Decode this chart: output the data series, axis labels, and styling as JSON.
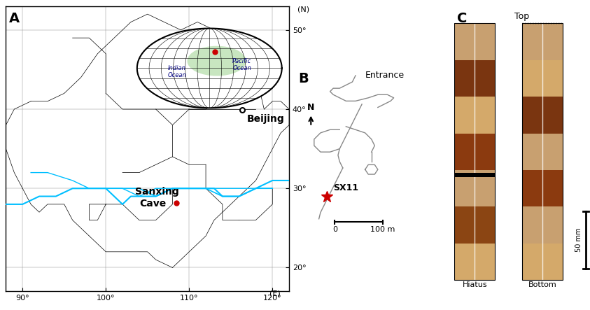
{
  "panel_A_label": "A",
  "panel_B_label": "B",
  "panel_C_label": "C",
  "beijing_lon": 116.4,
  "beijing_lat": 39.9,
  "cave_lon": 108.5,
  "cave_lat": 28.2,
  "globe_dot_lon": 108.5,
  "globe_dot_lat": 28.2,
  "map_xlim": [
    88,
    122
  ],
  "map_ylim": [
    17,
    53
  ],
  "xticks": [
    90,
    100,
    110,
    120
  ],
  "yticks": [
    20,
    30,
    40,
    50
  ],
  "xlabel": "(E)",
  "ylabel": "(N)",
  "beijing_label": "Beijing",
  "cave_label_line1": "Sanxing",
  "cave_label_line2": "Cave",
  "entrance_label": "Entrance",
  "sx11_label": "SX11",
  "top_label": "Top",
  "hiatus_label": "Hiatus",
  "bottom_label": "Bottom",
  "scale_label": "50 mm",
  "north_label": "N",
  "scale_bar_label": "0        100 m",
  "indian_ocean": "Indian\nOcean",
  "pacific_ocean": "Pacific\nOcean",
  "bg_color": "#ffffff",
  "map_border_color": "#000000",
  "river_color": "#00bfff",
  "land_color": "#ffffff",
  "globe_land_color": "#c8e6c0",
  "globe_ocean_color": "#ffffff",
  "red_dot_color": "#cc0000",
  "black_dot_color": "#000000",
  "red_star_color": "#cc0000",
  "cave_line_color": "#888888",
  "stalagmite_bg": "#c8a882"
}
